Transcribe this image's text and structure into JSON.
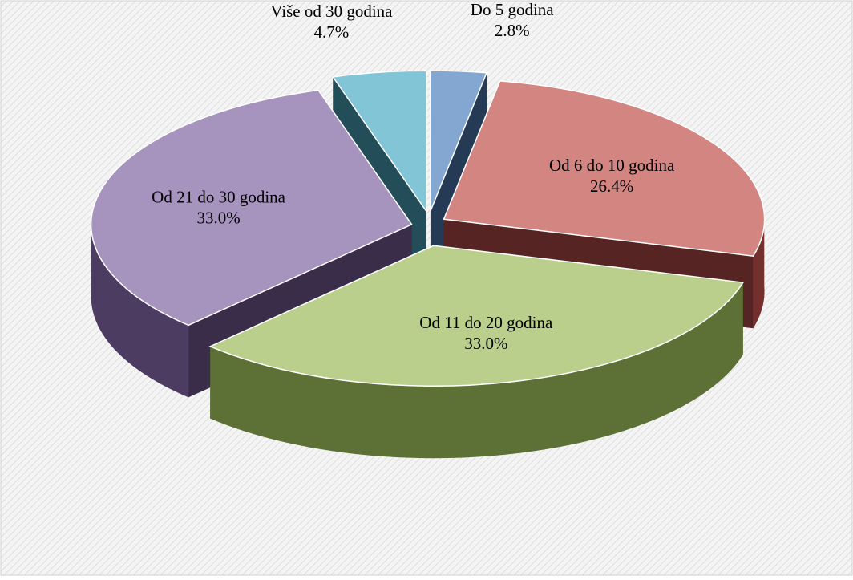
{
  "chart_data": {
    "type": "pie",
    "categories": [
      "Do 5 godina",
      "Od 6 do 10 godina",
      "Od 11 do 20 godina",
      "Od 21 do 30 godina",
      "Više od 30 godina"
    ],
    "values": [
      2.8,
      26.4,
      33.0,
      33.0,
      4.7
    ],
    "value_labels": [
      "2.8%",
      "26.4%",
      "33.0%",
      "33.0%",
      "4.7%"
    ],
    "colors": [
      "#4f81bd",
      "#c0504d",
      "#9bbb59",
      "#8064a2",
      "#4bacc6"
    ]
  }
}
